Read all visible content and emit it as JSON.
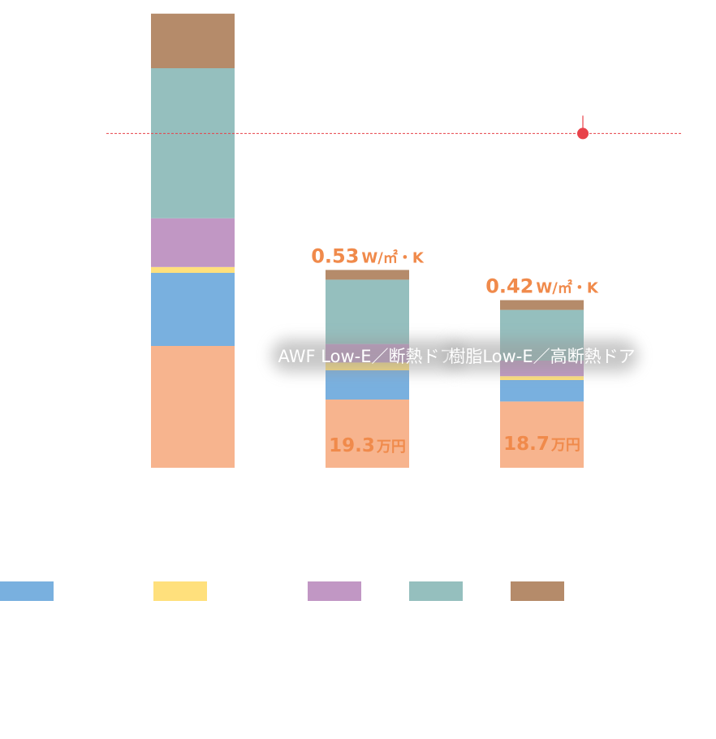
{
  "chart_data": {
    "type": "bar",
    "stacked": true,
    "categories": [
      "",
      "AWF Low-E／断熱ドア",
      "樹脂Low-E／高断熱ドア"
    ],
    "series": [
      {
        "color": "#f7b48e",
        "values": [
          125,
          70,
          68
        ]
      },
      {
        "color": "#79b0df",
        "values": [
          75,
          30,
          22
        ]
      },
      {
        "color": "#ffe07c",
        "values": [
          6,
          8,
          4
        ]
      },
      {
        "color": "#c197c4",
        "values": [
          50,
          19,
          16
        ]
      },
      {
        "color": "#95bfbe",
        "values": [
          154,
          66,
          52
        ]
      },
      {
        "color": "#b58b6a",
        "values": [
          56,
          10,
          10
        ]
      }
    ],
    "reference_line": {
      "value": 343,
      "color": "#e8424a",
      "style": "dotted"
    },
    "u_values": [
      null,
      {
        "number": "0.53",
        "unit": "W/㎡・K"
      },
      {
        "number": "0.42",
        "unit": "W/㎡・K"
      }
    ],
    "costs": [
      null,
      {
        "number": "19.3",
        "unit": "万円"
      },
      {
        "number": "18.7",
        "unit": "万円"
      }
    ],
    "legend": [
      {
        "color": "#79b0df"
      },
      {
        "color": "#ffe07c"
      },
      {
        "color": "#c197c4"
      },
      {
        "color": "#95bfbe"
      },
      {
        "color": "#b58b6a"
      }
    ],
    "legend_position": "bottom",
    "grid": false
  }
}
